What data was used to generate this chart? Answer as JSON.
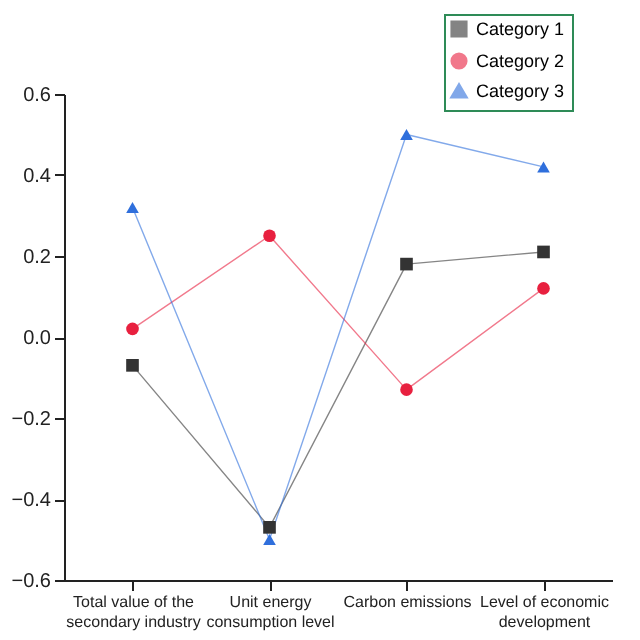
{
  "chart_data": {
    "type": "line",
    "categories": [
      "Total value of the secondary industry",
      "Unit energy consumption level",
      "Carbon emissions",
      "Level of economic development"
    ],
    "series": [
      {
        "name": "Category 1",
        "color": "#333333",
        "marker": "square",
        "values": [
          -0.07,
          -0.47,
          0.18,
          0.21
        ]
      },
      {
        "name": "Category 2",
        "color": "#e8203f",
        "marker": "circle",
        "values": [
          0.02,
          0.25,
          -0.13,
          0.12
        ]
      },
      {
        "name": "Category 3",
        "color": "#2f6fdc",
        "marker": "triangle",
        "values": [
          0.32,
          -0.5,
          0.5,
          0.42
        ]
      }
    ],
    "ylim": [
      -0.6,
      0.6
    ],
    "yticks": [
      -0.6,
      -0.4,
      -0.2,
      {
        "value": 0,
        "label": "0.0"
      },
      0.2,
      0.4,
      0.6
    ],
    "grid": false,
    "legend": "top right",
    "line_style": "solid"
  }
}
